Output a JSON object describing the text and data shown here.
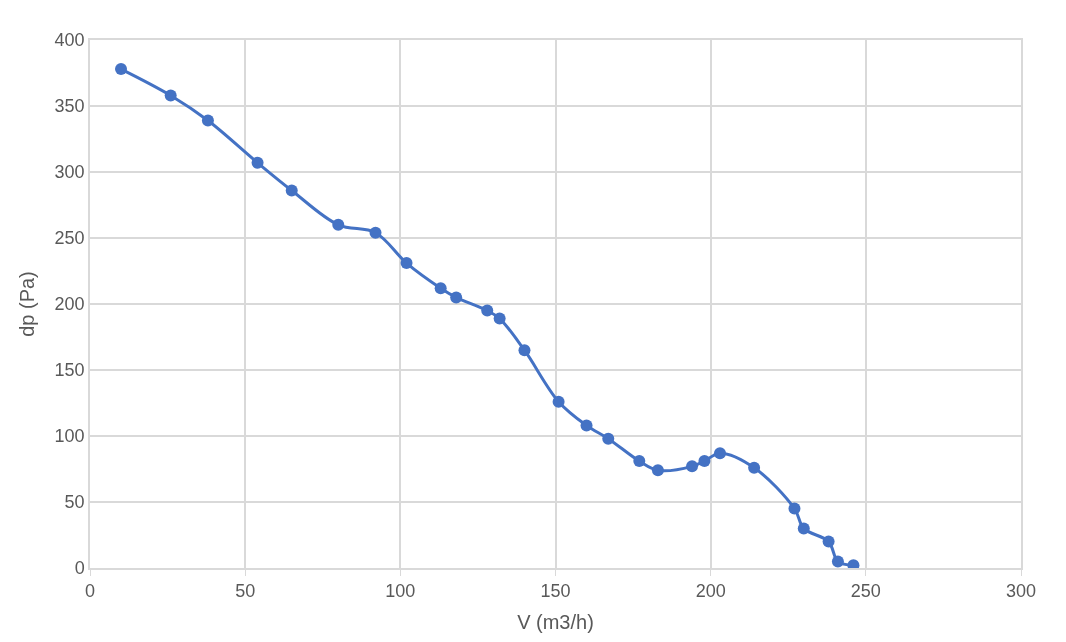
{
  "chart_data": {
    "type": "line",
    "xlabel": "V (m3/h)",
    "ylabel": "dp (Pa)",
    "x": [
      10,
      26,
      38,
      54,
      65,
      80,
      92,
      102,
      113,
      118,
      128,
      132,
      140,
      151,
      160,
      167,
      177,
      183,
      194,
      198,
      203,
      214,
      227,
      230,
      238,
      241,
      246
    ],
    "series": [
      {
        "color": "#4472c4",
        "values": [
          378,
          358,
          339,
          307,
          286,
          260,
          254,
          231,
          212,
          205,
          195,
          189,
          165,
          126,
          108,
          98,
          81,
          74,
          77,
          81,
          87,
          76,
          45,
          30,
          20,
          5,
          2
        ]
      }
    ],
    "xlim": [
      0,
      300
    ],
    "xticks": [
      0,
      50,
      100,
      150,
      200,
      250,
      300
    ],
    "ylim": [
      0,
      400
    ],
    "yticks": [
      0,
      50,
      100,
      150,
      200,
      250,
      300,
      350,
      400
    ],
    "grid": true,
    "marker": "circle",
    "line_style": "solid",
    "legend": false
  }
}
